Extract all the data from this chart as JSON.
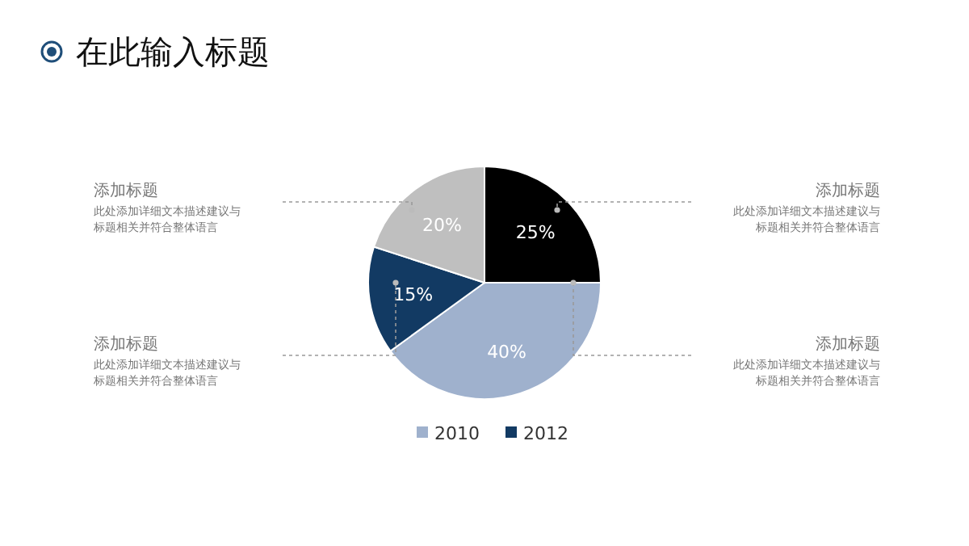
{
  "chart_data": {
    "type": "pie",
    "title": "在此输入标题",
    "categories": [
      null,
      "2010",
      "2012",
      null
    ],
    "values": [
      25,
      40,
      15,
      20
    ],
    "value_labels": [
      "25%",
      "40%",
      "15%",
      "20%"
    ],
    "colors": [
      "#000000",
      "#9fb1cd",
      "#123a63",
      "#bfbfbf"
    ],
    "legend": "bottom",
    "annotations": [
      "添加标题",
      "此处添加详细文本描述建议与标题相关并符合整体语言",
      "添加标题",
      "此处添加详细文本描述建议与标题相关并符合整体语言",
      "添加标题",
      "此处添加详细文本描述建议与标题相关并符合整体语言",
      "添加标题",
      "此处添加详细文本描述建议与标题相关并符合整体语言"
    ]
  }
}
